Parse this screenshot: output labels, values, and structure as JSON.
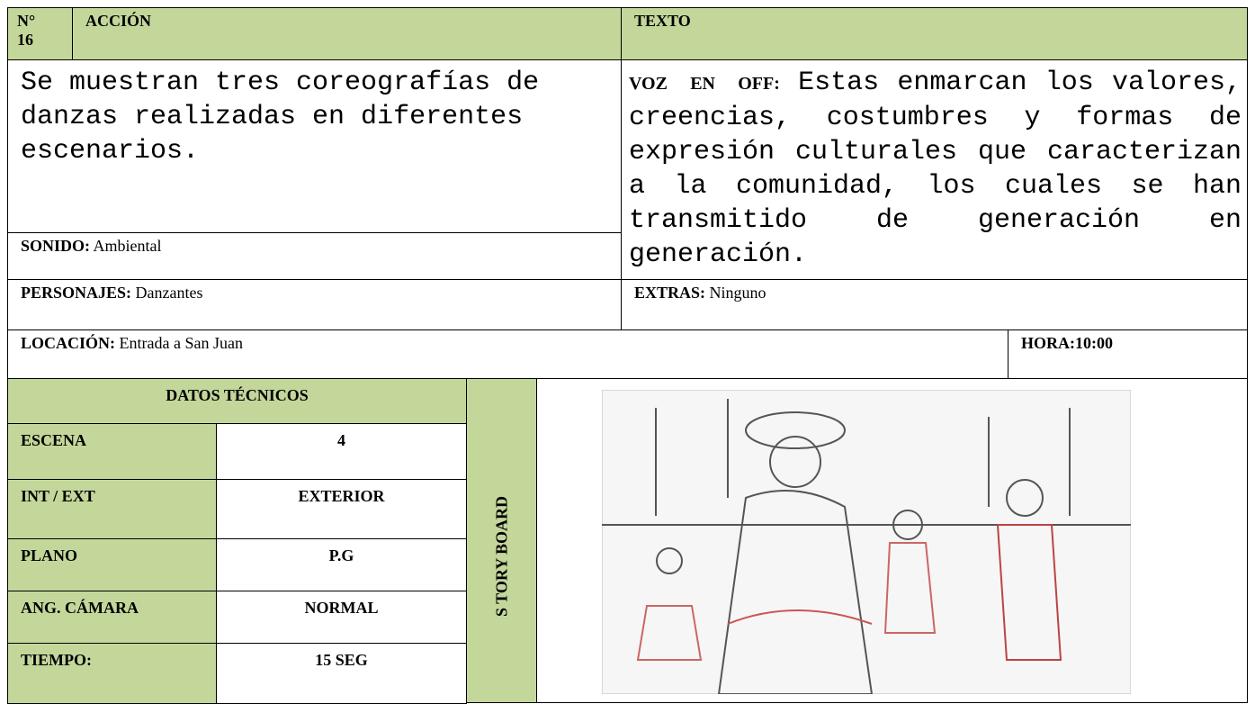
{
  "header": {
    "number_label": "N°",
    "number": "16",
    "accion": "ACCIÓN",
    "texto": "TEXTO"
  },
  "accion": "Se muestran tres coreografías de danzas realizadas en diferentes escenarios.",
  "sonido": {
    "label": "SONIDO:",
    "value": "Ambiental"
  },
  "texto": {
    "label": "VOZ EN OFF:",
    "value": "Estas enmarcan los valores, creencias, costumbres y formas de expresión culturales que caracterizan a la comunidad, los cuales se han transmitido de generación en generación."
  },
  "personajes": {
    "label": "PERSONAJES:",
    "value": "Danzantes"
  },
  "extras": {
    "label": "EXTRAS:",
    "value": "Ninguno"
  },
  "locacion": {
    "label": "LOCACIÓN:",
    "value": "Entrada a  San Juan"
  },
  "hora": {
    "label": "HORA:",
    "value": "10:00"
  },
  "datos_tecnicos": {
    "title": "DATOS TÉCNICOS",
    "rows": [
      [
        "ESCENA",
        "4"
      ],
      [
        "INT / EXT",
        "EXTERIOR"
      ],
      [
        "PLANO",
        "P.G"
      ],
      [
        "ANG. CÁMARA",
        "NORMAL"
      ],
      [
        "TIEMPO:",
        "15 SEG"
      ]
    ]
  },
  "storyboard_label": "S TORY BOARD"
}
